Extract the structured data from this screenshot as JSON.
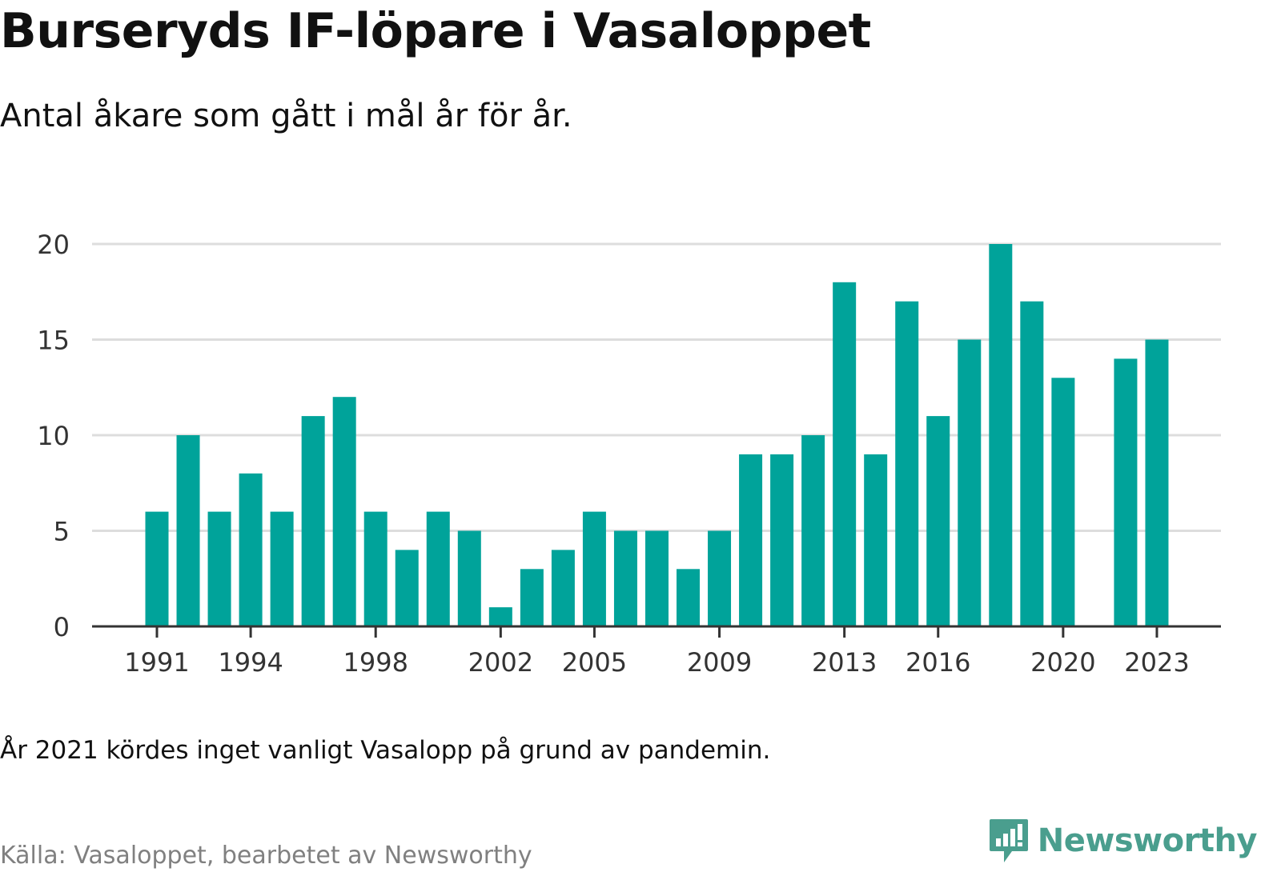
{
  "title": "Burseryds IF-löpare i Vasaloppet",
  "subtitle": "Antal åkare som gått i mål år för år.",
  "note": "År 2021 kördes inget vanligt Vasalopp på grund av pandemin.",
  "source": "Källa: Vasaloppet, bearbetet av Newsworthy",
  "brand": {
    "name": "Newsworthy",
    "icon": "newsworthy-logo-icon",
    "color": "#4a9e8e"
  },
  "colors": {
    "bar": "#00a39a",
    "grid": "#dddddd",
    "axis": "#333333"
  },
  "chart_data": {
    "type": "bar",
    "categories": [
      1991,
      1992,
      1993,
      1994,
      1995,
      1996,
      1997,
      1998,
      1999,
      2000,
      2001,
      2002,
      2003,
      2004,
      2005,
      2006,
      2007,
      2008,
      2009,
      2010,
      2011,
      2012,
      2013,
      2014,
      2015,
      2016,
      2017,
      2018,
      2019,
      2020,
      2021,
      2022,
      2023
    ],
    "values": [
      6,
      10,
      6,
      8,
      6,
      11,
      12,
      6,
      4,
      6,
      5,
      1,
      3,
      4,
      6,
      5,
      5,
      3,
      5,
      9,
      9,
      10,
      18,
      9,
      17,
      11,
      15,
      20,
      17,
      13,
      null,
      14,
      15
    ],
    "x_tick_labels": [
      "1991",
      "1994",
      "1998",
      "2002",
      "2005",
      "2009",
      "2013",
      "2016",
      "2020",
      "2023"
    ],
    "y_ticks": [
      0,
      5,
      10,
      15,
      20
    ],
    "ylim": [
      0,
      20
    ],
    "grid": true,
    "legend": false
  }
}
